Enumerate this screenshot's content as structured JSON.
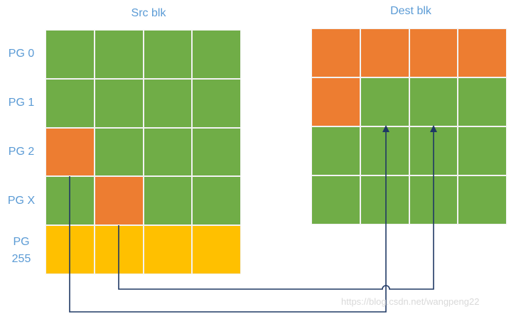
{
  "src_title": "Src blk",
  "dest_title": "Dest blk",
  "row_labels": [
    "PG 0",
    "PG 1",
    "PG 2",
    "PG X",
    "PG",
    "255"
  ],
  "watermark": "https://blog.csdn.net/wangpeng22",
  "colors": {
    "green": "#70ad47",
    "orange": "#ed7d31",
    "yellow": "#ffc000",
    "label_blue": "#5b9bd5",
    "arrow": "#1f3864"
  },
  "src_cells": [
    [
      "green",
      "green",
      "green",
      "green"
    ],
    [
      "green",
      "green",
      "green",
      "green"
    ],
    [
      "orange",
      "green",
      "green",
      "green"
    ],
    [
      "green",
      "orange",
      "green",
      "green"
    ],
    [
      "yellow",
      "yellow",
      "yellow",
      "yellow"
    ]
  ],
  "dest_cells": [
    [
      "orange",
      "orange",
      "orange",
      "orange"
    ],
    [
      "orange",
      "green",
      "green",
      "green"
    ],
    [
      "green",
      "green",
      "green",
      "green"
    ],
    [
      "green",
      "green",
      "green",
      "green"
    ]
  ]
}
